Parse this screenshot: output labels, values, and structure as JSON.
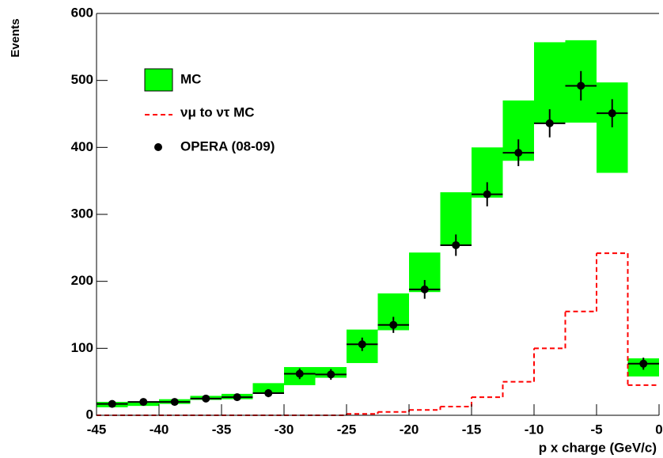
{
  "chart_data": {
    "type": "histogram",
    "x_label": "p x charge (GeV/c)",
    "y_label": "Events",
    "bins": [
      -45,
      -42.5,
      -40,
      -37.5,
      -35,
      -32.5,
      -30,
      -27.5,
      -25,
      -22.5,
      -20,
      -17.5,
      -15,
      -12.5,
      -10,
      -7.5,
      -5,
      -2.5,
      0
    ],
    "xlim": [
      -45,
      0
    ],
    "xticks": [
      -45,
      -40,
      -35,
      -30,
      -25,
      -20,
      -15,
      -10,
      -5,
      0
    ],
    "ylim": [
      0,
      600
    ],
    "yticks": [
      0,
      100,
      200,
      300,
      400,
      500,
      600
    ],
    "series": [
      {
        "name": "MC",
        "color": "#00ff00",
        "low": [
          12,
          14,
          17,
          23,
          24,
          32,
          45,
          56,
          78,
          127,
          184,
          255,
          325,
          380,
          437,
          437,
          362,
          58
        ],
        "high": [
          20,
          20,
          24,
          29,
          32,
          48,
          72,
          72,
          128,
          182,
          243,
          333,
          400,
          470,
          557,
          560,
          497,
          85
        ]
      },
      {
        "name": "νμ to ντ MC",
        "color": "#ff0000",
        "values": [
          0,
          0,
          0,
          0,
          0,
          0,
          0,
          0,
          2,
          5,
          8,
          13,
          27,
          50,
          100,
          155,
          242,
          45
        ]
      },
      {
        "name": "OPERA (08-09)",
        "color": "#000000",
        "values": [
          17,
          20,
          20,
          25,
          27,
          33,
          62,
          61,
          106,
          135,
          188,
          254,
          330,
          392,
          436,
          492,
          451,
          77
        ],
        "errors": [
          4,
          4,
          4,
          5,
          5,
          6,
          8,
          8,
          10,
          12,
          14,
          16,
          18,
          20,
          21,
          22,
          21,
          9
        ]
      }
    ]
  }
}
